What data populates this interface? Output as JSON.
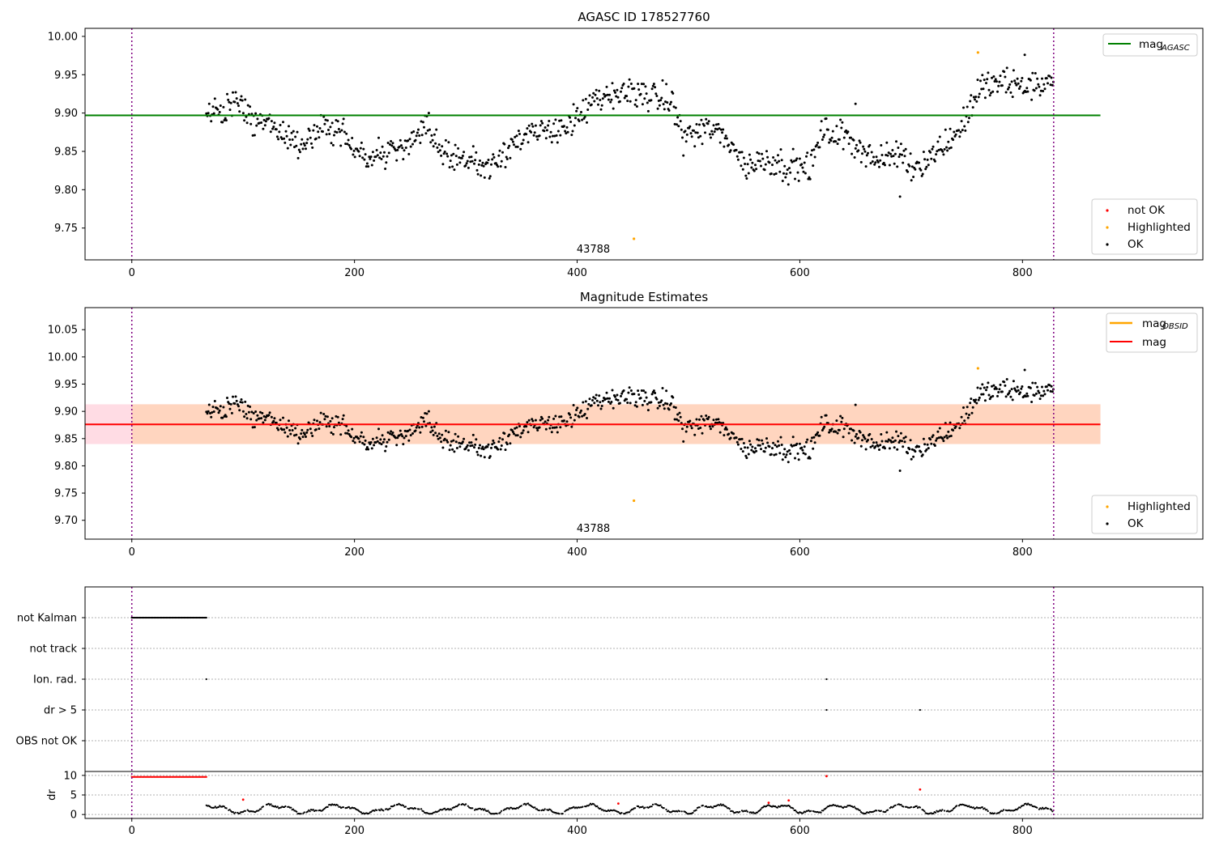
{
  "chart_data": [
    {
      "type": "scatter",
      "title": "AGASC ID 178527760",
      "x_ticks": [
        0,
        200,
        400,
        600,
        800
      ],
      "xlim": [
        -42,
        962
      ],
      "y_ticks": [
        9.75,
        9.8,
        9.85,
        9.9,
        9.95,
        10.0
      ],
      "y_tick_labels": [
        "9.75",
        "9.80",
        "9.85",
        "9.90",
        "9.95",
        "10.00"
      ],
      "ylim": [
        9.7085,
        10.0105
      ],
      "vlines": [
        0,
        828
      ],
      "hlines": [
        {
          "name": "mag_AGASC",
          "y": 9.897,
          "x": [
            -42,
            870
          ],
          "color": "#008000"
        }
      ],
      "annotation": {
        "text": "43788",
        "x": 413,
        "y": 9.722
      },
      "legend_lines": {
        "position": "top-right",
        "entries": [
          {
            "label": "mag",
            "sub": "AGASC",
            "color": "#008000"
          }
        ]
      },
      "legend_points": {
        "position": "lower-right",
        "entries": [
          {
            "label": "not OK",
            "color": "#ff0000"
          },
          {
            "label": "Highlighted",
            "color": "#ffa500"
          },
          {
            "label": "OK",
            "color": "#000000"
          }
        ]
      },
      "series": [
        {
          "name": "OK",
          "color": "#000000",
          "model": "mag_trace"
        },
        {
          "name": "Highlighted",
          "color": "#ffa500",
          "points": [
            [
              451,
              9.736
            ],
            [
              760,
              9.979
            ]
          ]
        }
      ]
    },
    {
      "type": "scatter",
      "title": "Magnitude Estimates",
      "x_ticks": [
        0,
        200,
        400,
        600,
        800
      ],
      "xlim": [
        -42,
        962
      ],
      "y_ticks": [
        9.7,
        9.75,
        9.8,
        9.85,
        9.9,
        9.95,
        10.0,
        10.05
      ],
      "y_tick_labels": [
        "9.70",
        "9.75",
        "9.80",
        "9.85",
        "9.90",
        "9.95",
        "10.00",
        "10.05"
      ],
      "ylim": [
        9.6654,
        10.0905
      ],
      "vlines": [
        0,
        828
      ],
      "band": {
        "y": [
          9.84,
          9.913
        ],
        "x": [
          -42,
          870
        ],
        "colors": [
          "#ffdce4",
          "#ffd5bf"
        ]
      },
      "hlines": [
        {
          "name": "mag",
          "y": 9.876,
          "x": [
            -42,
            870
          ],
          "color": "#ff0000"
        }
      ],
      "annotation": {
        "text": "43788",
        "x": 413,
        "y": 9.68
      },
      "legend_lines": {
        "position": "top-right",
        "entries": [
          {
            "label": "mag",
            "sub": "OBSID",
            "color": "#ffa500"
          },
          {
            "label": "mag",
            "sub": "",
            "color": "#ff0000"
          }
        ]
      },
      "legend_points": {
        "position": "lower-right",
        "entries": [
          {
            "label": "Highlighted",
            "color": "#ffa500"
          },
          {
            "label": "OK",
            "color": "#000000"
          }
        ]
      },
      "series": [
        {
          "name": "OK",
          "color": "#000000",
          "model": "mag_trace"
        },
        {
          "name": "Highlighted",
          "color": "#ffa500",
          "points": [
            [
              451,
              9.736
            ],
            [
              760,
              9.979
            ]
          ]
        }
      ]
    },
    {
      "type": "scatter",
      "title": "",
      "x_ticks": [
        0,
        200,
        400,
        600,
        800
      ],
      "xlim": [
        -42,
        962
      ],
      "vlines": [
        0,
        828
      ],
      "flag_rows": [
        "not Kalman",
        "not track",
        "Ion. rad.",
        "dr > 5",
        "OBS not OK"
      ],
      "flag_points": [
        {
          "row": "not Kalman",
          "x_range": [
            0,
            67
          ]
        },
        {
          "row": "Ion. rad.",
          "x": [
            67,
            624
          ]
        },
        {
          "row": "dr > 5",
          "x": [
            624,
            708
          ]
        }
      ],
      "dr": {
        "ylabel": "dr",
        "y_ticks": [
          0,
          5,
          10
        ],
        "ylim": [
          -1,
          11
        ],
        "red_points": [
          [
            0,
            9.6
          ],
          [
            10,
            9.6
          ],
          [
            20,
            9.6
          ],
          [
            30,
            9.6
          ],
          [
            40,
            9.6
          ],
          [
            50,
            9.6
          ],
          [
            60,
            9.6
          ],
          [
            67,
            9.6
          ],
          [
            100,
            3.8
          ],
          [
            437,
            2.8
          ],
          [
            572,
            3.0
          ],
          [
            590,
            3.6
          ],
          [
            624,
            9.8
          ],
          [
            708,
            6.4
          ]
        ],
        "trace": "dr_trace"
      }
    }
  ]
}
